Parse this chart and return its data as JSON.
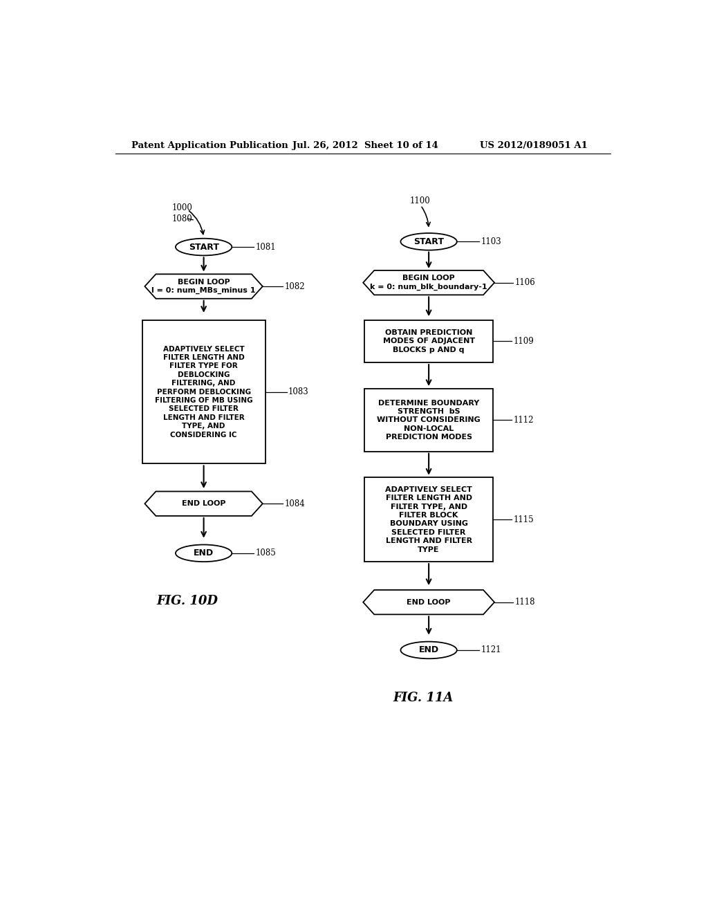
{
  "header_left": "Patent Application Publication",
  "header_mid": "Jul. 26, 2012  Sheet 10 of 14",
  "header_right": "US 2012/0189051 A1",
  "fig10d_label": "FIG. 10D",
  "fig11a_label": "FIG. 11A",
  "background": "#ffffff"
}
